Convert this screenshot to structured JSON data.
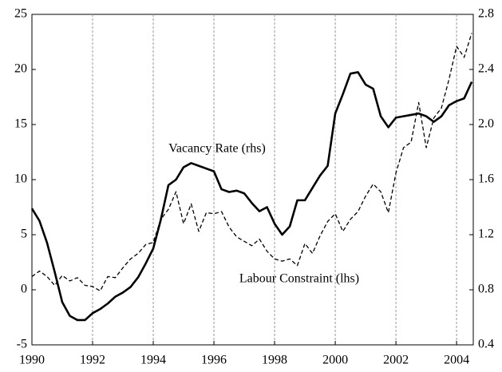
{
  "chart_data": {
    "type": "line",
    "x": [
      1990,
      1990.25,
      1990.5,
      1990.75,
      1991,
      1991.25,
      1991.5,
      1991.75,
      1992,
      1992.25,
      1992.5,
      1992.75,
      1993,
      1993.25,
      1993.5,
      1993.75,
      1994,
      1994.25,
      1994.5,
      1994.75,
      1995,
      1995.25,
      1995.5,
      1995.75,
      1996,
      1996.25,
      1996.5,
      1996.75,
      1997,
      1997.25,
      1997.5,
      1997.75,
      1998,
      1998.25,
      1998.5,
      1998.75,
      1999,
      1999.25,
      1999.5,
      1999.75,
      2000,
      2000.25,
      2000.5,
      2000.75,
      2001,
      2001.25,
      2001.5,
      2001.75,
      2002,
      2002.25,
      2002.5,
      2002.75,
      2003,
      2003.25,
      2003.5,
      2003.75,
      2004,
      2004.25,
      2004.5
    ],
    "series": [
      {
        "name": "Vacancy Rate (rhs)",
        "color": "#000000",
        "style": "solid",
        "axis": "y2",
        "values": [
          1.39,
          1.3,
          1.14,
          0.93,
          0.71,
          0.61,
          0.58,
          0.58,
          0.63,
          0.66,
          0.7,
          0.75,
          0.78,
          0.82,
          0.89,
          0.99,
          1.1,
          1.31,
          1.56,
          1.6,
          1.69,
          1.72,
          1.7,
          1.68,
          1.66,
          1.53,
          1.51,
          1.52,
          1.5,
          1.43,
          1.37,
          1.4,
          1.28,
          1.2,
          1.26,
          1.45,
          1.45,
          1.54,
          1.63,
          1.7,
          2.08,
          2.22,
          2.37,
          2.38,
          2.29,
          2.26,
          2.06,
          1.98,
          2.05,
          2.06,
          2.07,
          2.08,
          2.06,
          2.02,
          2.06,
          2.14,
          2.17,
          2.19,
          2.31
        ]
      },
      {
        "name": "Labour Constraint (lhs)",
        "color": "#000000",
        "style": "dashed",
        "axis": "y",
        "values": [
          1.2,
          1.7,
          1.2,
          0.4,
          1.3,
          0.8,
          1.1,
          0.4,
          0.3,
          -0.1,
          1.2,
          1.1,
          2.0,
          2.8,
          3.3,
          4.1,
          4.3,
          6.4,
          7.3,
          8.9,
          6.0,
          7.8,
          5.3,
          7.0,
          6.9,
          7.1,
          5.7,
          4.8,
          4.4,
          4.0,
          4.6,
          3.5,
          2.8,
          2.6,
          2.8,
          2.2,
          4.2,
          3.3,
          4.9,
          6.2,
          6.9,
          5.3,
          6.4,
          7.1,
          8.5,
          9.6,
          8.9,
          7.0,
          10.6,
          12.9,
          13.4,
          17.0,
          12.9,
          15.6,
          16.5,
          19.1,
          22.1,
          21.1,
          23.3
        ]
      }
    ],
    "xlim": [
      1990,
      2004.55
    ],
    "xticks": [
      1990,
      1992,
      1994,
      1996,
      1998,
      2000,
      2002,
      2004
    ],
    "ylim": [
      -5,
      25
    ],
    "yticks": [
      -5,
      0,
      5,
      10,
      15,
      20,
      25
    ],
    "y2lim": [
      0.4,
      2.8
    ],
    "y2ticks": [
      0.4,
      0.8,
      1.2,
      1.6,
      {
        "value": 2,
        "label": "2.0"
      },
      2.4,
      2.8
    ],
    "grid": "x"
  }
}
